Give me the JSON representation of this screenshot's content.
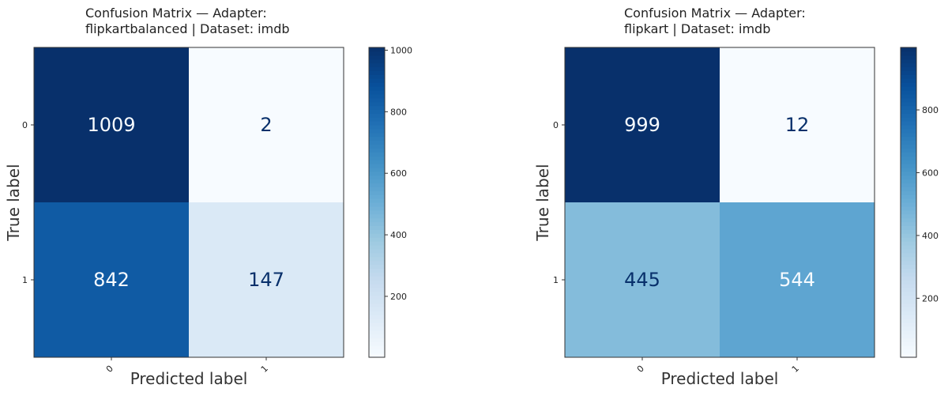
{
  "chart_data": [
    {
      "type": "heatmap",
      "title_lines": [
        "Confusion Matrix — Adapter:",
        "flipkartbalanced | Dataset: imdb"
      ],
      "xlabel": "Predicted label",
      "ylabel": "True label",
      "x_tick_labels": [
        "0",
        "1"
      ],
      "y_tick_labels": [
        "0",
        "1"
      ],
      "matrix": [
        [
          1009,
          2
        ],
        [
          842,
          147
        ]
      ],
      "colormap": "Blues",
      "color_range": [
        2,
        1009
      ],
      "colorbar_ticks": [
        "200",
        "400",
        "600",
        "800",
        "1000"
      ]
    },
    {
      "type": "heatmap",
      "title_lines": [
        "Confusion Matrix — Adapter:",
        "flipkart | Dataset: imdb"
      ],
      "xlabel": "Predicted label",
      "ylabel": "True label",
      "x_tick_labels": [
        "0",
        "1"
      ],
      "y_tick_labels": [
        "0",
        "1"
      ],
      "matrix": [
        [
          999,
          12
        ],
        [
          445,
          544
        ]
      ],
      "colormap": "Blues",
      "color_range": [
        12,
        999
      ],
      "colorbar_ticks": [
        "200",
        "400",
        "600",
        "800"
      ]
    }
  ],
  "colors": {
    "blues": [
      "#f7fbff",
      "#deebf7",
      "#c6dbef",
      "#9ecae1",
      "#6baed6",
      "#4292c6",
      "#2171b5",
      "#08519c",
      "#08306b"
    ],
    "text_dark": "#08306b",
    "text_light": "#f7fbff"
  }
}
